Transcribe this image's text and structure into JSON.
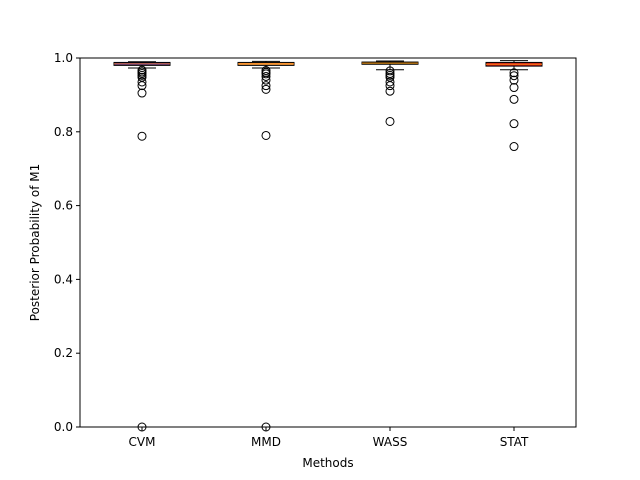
{
  "chart_data": {
    "type": "box",
    "categories": [
      "CVM",
      "MMD",
      "WASS",
      "STAT"
    ],
    "xlabel": "Methods",
    "ylabel": "Posterior Probability of M1",
    "ylim": [
      0.0,
      1.0
    ],
    "yticks": [
      0.0,
      0.2,
      0.4,
      0.6,
      0.8,
      1.0
    ],
    "ytick_labels": [
      "0.0",
      "0.2",
      "0.4",
      "0.6",
      "0.8",
      "1.0"
    ],
    "grid": false,
    "boxes": [
      {
        "category": "CVM",
        "color": "#1f1fbf",
        "q1": 0.98,
        "median": 0.984,
        "q3": 0.988,
        "whisker_low": 0.973,
        "whisker_high": 0.99,
        "outliers": [
          0.967,
          0.962,
          0.958,
          0.953,
          0.948,
          0.935,
          0.925,
          0.905,
          0.788,
          0.0
        ]
      },
      {
        "category": "MMD",
        "color": "#f0b060",
        "q1": 0.98,
        "median": 0.984,
        "q3": 0.988,
        "whisker_low": 0.973,
        "whisker_high": 0.991,
        "outliers": [
          0.966,
          0.961,
          0.957,
          0.95,
          0.94,
          0.925,
          0.915,
          0.79,
          0.0
        ]
      },
      {
        "category": "WASS",
        "color": "#2e8b2e",
        "q1": 0.983,
        "median": 0.986,
        "q3": 0.989,
        "whisker_low": 0.968,
        "whisker_high": 0.992,
        "outliers": [
          0.965,
          0.958,
          0.953,
          0.948,
          0.935,
          0.925,
          0.91,
          0.828
        ]
      },
      {
        "category": "STAT",
        "color": "#cc1f1f",
        "q1": 0.978,
        "median": 0.983,
        "q3": 0.988,
        "whisker_low": 0.968,
        "whisker_high": 0.993,
        "outliers": [
          0.96,
          0.952,
          0.94,
          0.92,
          0.888,
          0.822,
          0.76
        ]
      }
    ]
  }
}
